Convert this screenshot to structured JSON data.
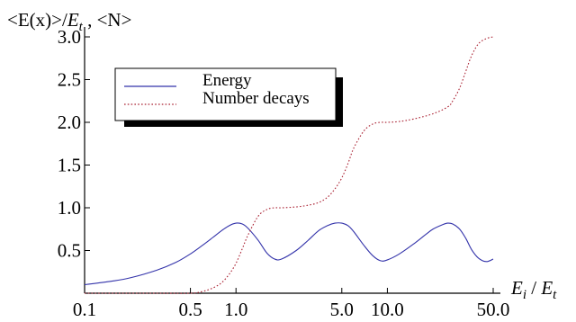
{
  "chart_data": {
    "type": "line",
    "ylabel_parts": [
      "<E(x)>/",
      "E",
      "t",
      " , <N>"
    ],
    "xlabel_parts": [
      "E",
      "i",
      " / ",
      "E",
      "t"
    ],
    "x_scale": "log",
    "xlim": [
      0.1,
      50.0
    ],
    "ylim": [
      0,
      3.0
    ],
    "xticks": [
      {
        "value": 0.1,
        "label": "0.1"
      },
      {
        "value": 0.5,
        "label": "0.5"
      },
      {
        "value": 1.0,
        "label": "1.0"
      },
      {
        "value": 5.0,
        "label": "5.0"
      },
      {
        "value": 10.0,
        "label": "10.0"
      },
      {
        "value": 50.0,
        "label": "50.0"
      }
    ],
    "yticks": [
      {
        "value": 0.5,
        "label": "0.5"
      },
      {
        "value": 1.0,
        "label": "1.0"
      },
      {
        "value": 1.5,
        "label": "1.5"
      },
      {
        "value": 2.0,
        "label": "2.0"
      },
      {
        "value": 2.5,
        "label": "2.5"
      },
      {
        "value": 3.0,
        "label": "3.0"
      }
    ],
    "legend_position": "top-left",
    "series": [
      {
        "name": "Energy",
        "color": "#3333aa",
        "dash": "solid",
        "x": [
          0.1,
          0.15,
          0.2,
          0.3,
          0.4,
          0.5,
          0.6,
          0.7,
          0.8,
          0.9,
          1.0,
          1.1,
          1.2,
          1.4,
          1.6,
          1.8,
          2.0,
          2.5,
          3.0,
          3.5,
          4.0,
          4.5,
          5.0,
          5.5,
          6.0,
          7.0,
          8.0,
          9.0,
          10.0,
          12.0,
          15.0,
          18.0,
          20.0,
          23.0,
          25.0,
          27.0,
          30.0,
          33.0,
          36.0,
          40.0,
          45.0,
          50.0
        ],
        "y": [
          0.1,
          0.14,
          0.18,
          0.27,
          0.36,
          0.46,
          0.56,
          0.65,
          0.73,
          0.79,
          0.82,
          0.81,
          0.76,
          0.62,
          0.47,
          0.4,
          0.4,
          0.5,
          0.62,
          0.73,
          0.79,
          0.82,
          0.82,
          0.79,
          0.72,
          0.56,
          0.44,
          0.38,
          0.39,
          0.46,
          0.58,
          0.69,
          0.75,
          0.8,
          0.82,
          0.81,
          0.75,
          0.64,
          0.51,
          0.41,
          0.37,
          0.4
        ]
      },
      {
        "name": "Number decays",
        "color": "#aa2233",
        "dash": "dotted",
        "x": [
          0.1,
          0.3,
          0.5,
          0.6,
          0.7,
          0.8,
          0.9,
          1.0,
          1.1,
          1.2,
          1.4,
          1.6,
          1.8,
          2.0,
          2.5,
          3.0,
          3.5,
          4.0,
          4.5,
          5.0,
          5.5,
          6.0,
          7.0,
          8.0,
          9.0,
          10.0,
          12.0,
          15.0,
          20.0,
          25.0,
          27.0,
          30.0,
          33.0,
          36.0,
          40.0,
          45.0,
          50.0
        ],
        "y": [
          0.0,
          0.0,
          0.0,
          0.02,
          0.06,
          0.12,
          0.22,
          0.35,
          0.52,
          0.68,
          0.9,
          0.98,
          1.0,
          1.0,
          1.01,
          1.03,
          1.06,
          1.12,
          1.22,
          1.35,
          1.52,
          1.7,
          1.9,
          1.98,
          2.0,
          2.0,
          2.01,
          2.04,
          2.1,
          2.18,
          2.25,
          2.4,
          2.6,
          2.78,
          2.92,
          2.98,
          3.0
        ]
      }
    ]
  }
}
